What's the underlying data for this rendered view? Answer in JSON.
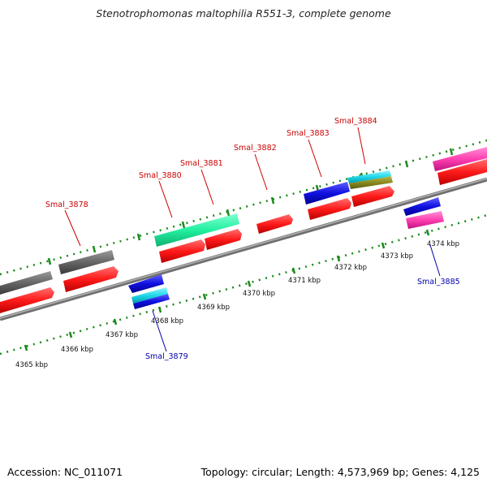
{
  "title": "Stenotrophomonas maltophilia R551-3, complete genome",
  "footer": {
    "accession": "Accession: NC_011071",
    "summary": "Topology: circular; Length: 4,573,969 bp; Genes: 4,125"
  },
  "ticks": [
    "4365 kbp",
    "4366 kbp",
    "4367 kbp",
    "4368 kbp",
    "4369 kbp",
    "4370 kbp",
    "4371 kbp",
    "4372 kbp",
    "4373 kbp",
    "4374 kbp"
  ],
  "labels": {
    "Smal_3878": "Smal_3878",
    "Smal_3879": "Smal_3879",
    "Smal_3880": "Smal_3880",
    "Smal_3881": "Smal_3881",
    "Smal_3882": "Smal_3882",
    "Smal_3883": "Smal_3883",
    "Smal_3884": "Smal_3884",
    "Smal_3885": "Smal_3885"
  },
  "colors": {
    "backbone": "#8c8c8c",
    "tick": "#1a8a1a",
    "cds": "#ff1a1a",
    "forward_label": "#cc0000",
    "reverse_label": "#0000aa",
    "gray_feature": "#666666",
    "teal_feature": "#22f0a0",
    "blue_feature": "#1010e0",
    "cyan_feature": "#20d8e8",
    "olive_feature": "#8a8a20",
    "pink_feature": "#ff40b0"
  }
}
